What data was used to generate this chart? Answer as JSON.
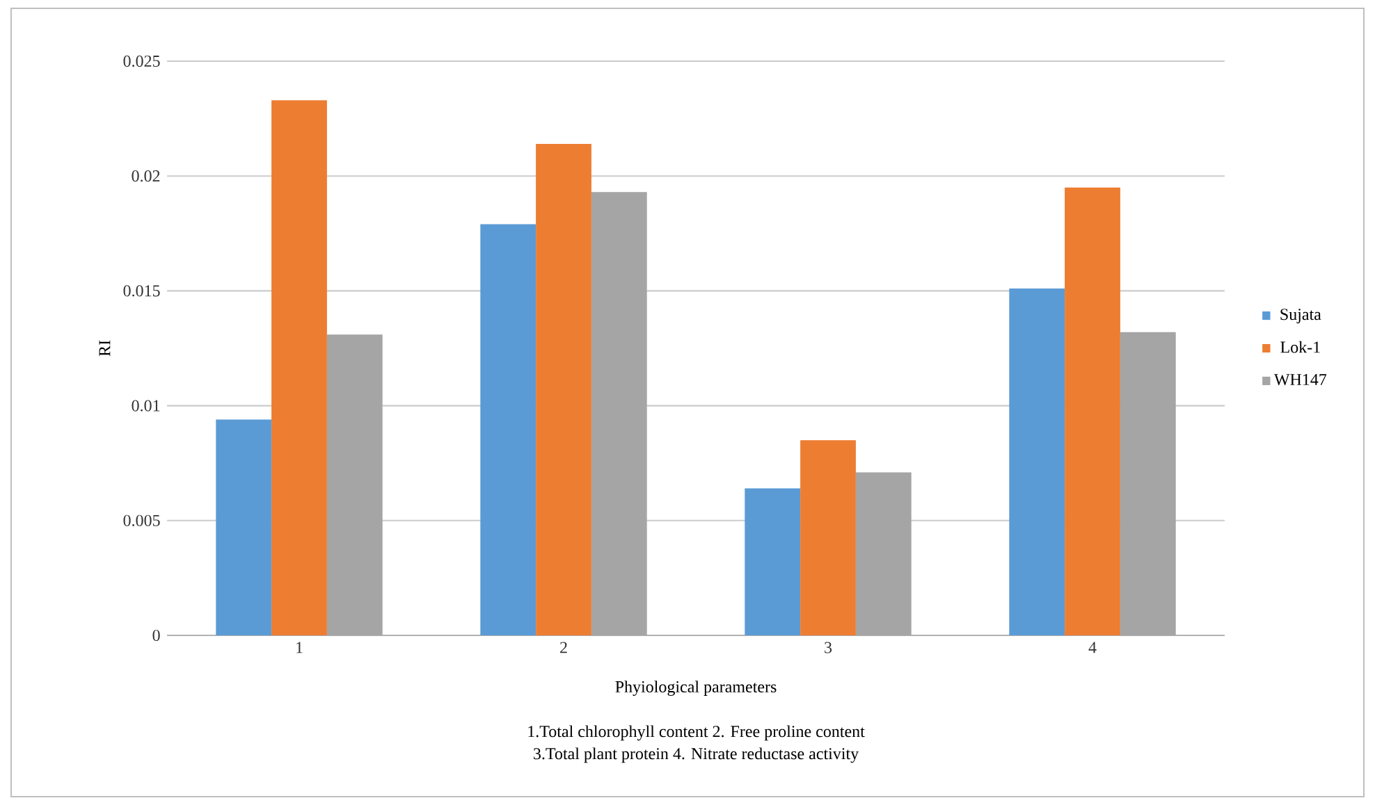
{
  "chart_data": {
    "type": "bar",
    "xlabel": "Phyiological parameters",
    "ylabel": "RI",
    "annotations": [
      "1.Total chlorophyll content  2. Free proline content",
      "3.Total plant protein 4. Nitrate reductase activity"
    ],
    "categories": [
      "1",
      "2",
      "3",
      "4"
    ],
    "series": [
      {
        "name": "Sujata",
        "color": "#5b9bd5",
        "values": [
          0.0094,
          0.0179,
          0.0064,
          0.0151
        ]
      },
      {
        "name": "Lok-1",
        "color": "#ed7d31",
        "values": [
          0.0233,
          0.0214,
          0.0085,
          0.0195
        ]
      },
      {
        "name": "WH147",
        "color": "#a5a5a5",
        "values": [
          0.0131,
          0.0193,
          0.0071,
          0.0132
        ]
      }
    ],
    "ylim": [
      0,
      0.025
    ],
    "yticks": [
      0,
      0.005,
      0.01,
      0.015,
      0.02,
      0.025
    ],
    "grid": "y",
    "legend": "right"
  }
}
